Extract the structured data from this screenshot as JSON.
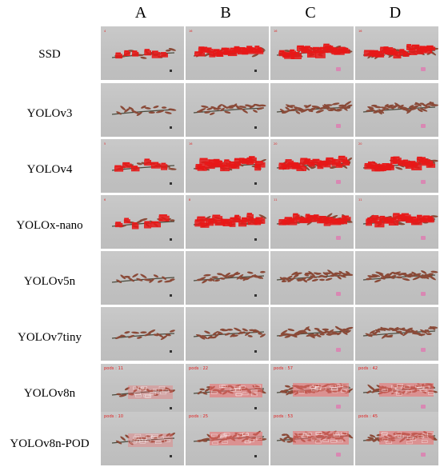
{
  "columns": [
    "A",
    "B",
    "C",
    "D"
  ],
  "rows": [
    {
      "label": "SSD",
      "boxes": "outline",
      "cells": [
        {
          "pods": "4"
        },
        {
          "pods": "16"
        },
        {
          "pods": "16"
        },
        {
          "pods": "16"
        }
      ]
    },
    {
      "label": "YOLOv3",
      "boxes": "none",
      "cells": [
        {},
        {},
        {},
        {}
      ]
    },
    {
      "label": "YOLOv4",
      "boxes": "outline",
      "cells": [
        {
          "pods": "5"
        },
        {
          "pods": "16"
        },
        {
          "pods": "20"
        },
        {
          "pods": "20"
        }
      ]
    },
    {
      "label": "YOLOx-nano",
      "boxes": "outline",
      "cells": [
        {
          "pods": "6"
        },
        {
          "pods": "8"
        },
        {
          "pods": "11"
        },
        {
          "pods": "11"
        }
      ]
    },
    {
      "label": "YOLOv5n",
      "boxes": "none",
      "cells": [
        {},
        {},
        {},
        {}
      ]
    },
    {
      "label": "YOLOv7tiny",
      "boxes": "none",
      "cells": [
        {},
        {},
        {},
        {}
      ]
    },
    {
      "label": "YOLOv8n",
      "boxes": "pink",
      "cells": [
        {
          "pods": "pods : 11"
        },
        {
          "pods": "pods : 22"
        },
        {
          "pods": "pods : 57"
        },
        {
          "pods": "pods : 42"
        }
      ]
    },
    {
      "label": "YOLOv8n-POD",
      "boxes": "pink",
      "cells": [
        {
          "pods": "pods : 10"
        },
        {
          "pods": "pods : 25"
        },
        {
          "pods": "pods : 53"
        },
        {
          "pods": "pods : 45"
        }
      ]
    }
  ],
  "colors": {
    "tile_background": "#c4c4c4",
    "stem": "#4a4a3c",
    "pod": "#8a4a38",
    "box_outline": "#e81818",
    "box_pink": "#f06a6a",
    "marker": "#e07ab0",
    "pods_text": "#e02020"
  }
}
